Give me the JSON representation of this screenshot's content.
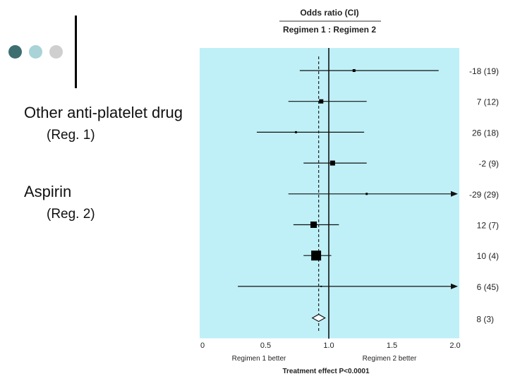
{
  "slide": {
    "bullet_colors": [
      "#3d6e70",
      "#a9d3d6",
      "#cfcfcf"
    ],
    "items": [
      {
        "title": "Other anti-platelet drug",
        "sub": "(Reg. 1)"
      },
      {
        "title": "Aspirin",
        "sub": "(Reg. 2)"
      }
    ]
  },
  "chart_data": {
    "type": "forest",
    "header": "Odds ratio (CI)",
    "subheader": "Regimen 1 : Regimen 2",
    "xlim": [
      0,
      2.0
    ],
    "xticks": [
      "0",
      "0.5",
      "1.0",
      "1.5",
      "2.0"
    ],
    "xlabel_left": "Regimen 1 better",
    "xlabel_right": "Regimen 2 better",
    "footer": "Treatment effect P<0.0001",
    "reference_line": 1.0,
    "summary_line": 0.92,
    "background": "#bff0f7",
    "rows": [
      {
        "or": 1.2,
        "lo": 0.77,
        "hi": 1.87,
        "box": 4,
        "label": "-18 (19)"
      },
      {
        "or": 0.94,
        "lo": 0.68,
        "hi": 1.3,
        "box": 6,
        "label": "7 (12)"
      },
      {
        "or": 0.74,
        "lo": 0.43,
        "hi": 1.28,
        "box": 3,
        "label": "26 (18)"
      },
      {
        "or": 1.03,
        "lo": 0.8,
        "hi": 1.3,
        "box": 7,
        "label": "-2 (9)"
      },
      {
        "or": 1.3,
        "lo": 0.68,
        "hi": 2.0,
        "box": 3,
        "label": "-29 (29)",
        "arrow": true
      },
      {
        "or": 0.88,
        "lo": 0.72,
        "hi": 1.08,
        "box": 9,
        "label": "12 (7)"
      },
      {
        "or": 0.9,
        "lo": 0.8,
        "hi": 1.02,
        "box": 14,
        "label": "10 (4)"
      },
      {
        "or": 0.94,
        "lo": 0.28,
        "hi": 2.0,
        "box": 2,
        "label": "6 (45)",
        "arrow": true
      }
    ],
    "summary": {
      "or": 0.92,
      "lo": 0.87,
      "hi": 0.97,
      "label": "8 (3)"
    }
  }
}
